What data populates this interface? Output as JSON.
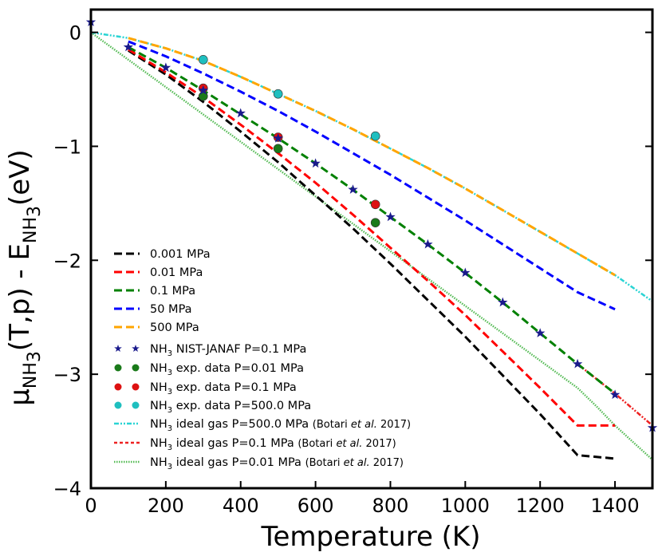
{
  "chart_data": {
    "type": "line",
    "xlabel": "Temperature (K)",
    "ylabel": {
      "mu": "μ",
      "mu_sub": "NH",
      "mu_sub2": "3",
      "mid": "(T,p) - E",
      "e_sub": "NH",
      "e_sub2": "3",
      "unit": "(eV)"
    },
    "xlim": [
      0,
      1500
    ],
    "ylim": [
      -4,
      0.2
    ],
    "xticks": [
      0,
      200,
      400,
      600,
      800,
      1000,
      1200,
      1400
    ],
    "yticks": [
      0,
      -1,
      -2,
      -3,
      -4
    ],
    "xtick_labels": [
      "0",
      "200",
      "400",
      "600",
      "800",
      "1000",
      "1200",
      "1400"
    ],
    "ytick_labels": [
      "0",
      "−1",
      "−2",
      "−3",
      "−4"
    ],
    "legend_position": "lower-left",
    "series": [
      {
        "key": "p0001",
        "name": "0.001 MPa",
        "style": "dashed",
        "color": "#000000",
        "x": [
          100,
          200,
          300,
          400,
          500,
          600,
          700,
          800,
          900,
          1000,
          1100,
          1200,
          1300,
          1400
        ],
        "y": [
          -0.16,
          -0.37,
          -0.61,
          -0.87,
          -1.14,
          -1.43,
          -1.72,
          -2.03,
          -2.35,
          -2.67,
          -3.01,
          -3.35,
          -3.71,
          -3.74
        ]
      },
      {
        "key": "p001",
        "name": "0.01 MPa",
        "style": "dashed",
        "color": "#ff0000",
        "x": [
          100,
          200,
          300,
          400,
          500,
          600,
          700,
          800,
          900,
          1000,
          1100,
          1200,
          1300,
          1400
        ],
        "y": [
          -0.15,
          -0.35,
          -0.57,
          -0.81,
          -1.06,
          -1.32,
          -1.6,
          -1.89,
          -2.18,
          -2.48,
          -2.8,
          -3.12,
          -3.45,
          -3.45
        ]
      },
      {
        "key": "p01",
        "name": "0.1 MPa",
        "style": "dashed",
        "color": "#008000",
        "x": [
          100,
          200,
          300,
          400,
          500,
          600,
          700,
          800,
          900,
          1000,
          1100,
          1200,
          1300,
          1400
        ],
        "y": [
          -0.13,
          -0.31,
          -0.51,
          -0.72,
          -0.93,
          -1.15,
          -1.38,
          -1.62,
          -1.86,
          -2.11,
          -2.37,
          -2.64,
          -2.91,
          -3.17
        ]
      },
      {
        "key": "p50",
        "name": "50 MPa",
        "style": "dashed",
        "color": "#0000ff",
        "x": [
          100,
          200,
          300,
          400,
          500,
          600,
          700,
          800,
          900,
          1000,
          1100,
          1200,
          1300,
          1400
        ],
        "y": [
          -0.08,
          -0.21,
          -0.36,
          -0.52,
          -0.69,
          -0.87,
          -1.06,
          -1.25,
          -1.45,
          -1.65,
          -1.86,
          -2.07,
          -2.28,
          -2.43
        ]
      },
      {
        "key": "p500",
        "name": "500 MPa",
        "style": "dashed",
        "color": "#ffa500",
        "x": [
          100,
          200,
          300,
          400,
          500,
          600,
          700,
          800,
          900,
          1000,
          1100,
          1200,
          1300,
          1400
        ],
        "y": [
          -0.05,
          -0.14,
          -0.25,
          -0.39,
          -0.54,
          -0.69,
          -0.85,
          -1.02,
          -1.19,
          -1.37,
          -1.56,
          -1.75,
          -1.94,
          -2.13
        ]
      },
      {
        "key": "janaf",
        "name_main": "NH",
        "name_sub": "3",
        "name_rest": " NIST-JANAF  P=0.1 MPa",
        "style": "stars",
        "color": "#1a1a8c",
        "x": [
          0,
          100,
          200,
          300,
          400,
          500,
          600,
          700,
          800,
          900,
          1000,
          1100,
          1200,
          1300,
          1400,
          1500
        ],
        "y": [
          0.09,
          -0.13,
          -0.31,
          -0.51,
          -0.71,
          -0.93,
          -1.15,
          -1.38,
          -1.62,
          -1.86,
          -2.11,
          -2.37,
          -2.64,
          -2.91,
          -3.18,
          -3.47
        ]
      },
      {
        "key": "exp001",
        "name_main": "NH",
        "name_sub": "3",
        "name_rest": " exp. data  P=0.01 MPa",
        "style": "circles",
        "color": "#1a7a1a",
        "x": [
          300,
          500,
          760
        ],
        "y": [
          -0.56,
          -1.02,
          -1.67
        ]
      },
      {
        "key": "exp01",
        "name_main": "NH",
        "name_sub": "3",
        "name_rest": " exp. data  P=0.1 MPa",
        "style": "circles",
        "color": "#dd1111",
        "x": [
          300,
          500,
          760
        ],
        "y": [
          -0.49,
          -0.92,
          -1.51
        ]
      },
      {
        "key": "exp500",
        "name_main": "NH",
        "name_sub": "3",
        "name_rest": " exp. data  P=500.0 MPa",
        "style": "circles",
        "color": "#1fbfbf",
        "x": [
          300,
          500,
          760
        ],
        "y": [
          -0.24,
          -0.54,
          -0.91
        ]
      },
      {
        "key": "ideal500",
        "name_main": "NH",
        "name_sub": "3",
        "name_rest": " ideal gas  P=500.0 MPa ",
        "name_cite_a": "(Botari ",
        "name_cite_b": "et al.",
        "name_cite_c": " 2017)",
        "style": "dashdot",
        "color": "#2ad4d4",
        "x": [
          0,
          100,
          200,
          300,
          400,
          500,
          600,
          700,
          800,
          900,
          1000,
          1100,
          1200,
          1300,
          1400,
          1500
        ],
        "y": [
          0.0,
          -0.05,
          -0.14,
          -0.25,
          -0.39,
          -0.54,
          -0.69,
          -0.85,
          -1.02,
          -1.19,
          -1.37,
          -1.56,
          -1.75,
          -1.94,
          -2.13,
          -2.36
        ]
      },
      {
        "key": "ideal01",
        "name_main": "NH",
        "name_sub": "3",
        "name_rest": " ideal gas  P=0.1 MPa ",
        "name_cite_a": "(Botari ",
        "name_cite_b": "et al.",
        "name_cite_c": " 2017)",
        "style": "dashdot",
        "color": "#ee2222",
        "x": [
          1300,
          1350,
          1400,
          1450,
          1500
        ],
        "y": [
          -2.91,
          -3.04,
          -3.17,
          -3.31,
          -3.45
        ]
      },
      {
        "key": "ideal001",
        "name_main": "NH",
        "name_sub": "3",
        "name_rest": " ideal gas  P=0.01 MPa ",
        "name_cite_a": "(Botari ",
        "name_cite_b": "et al.",
        "name_cite_c": " 2017)",
        "style": "dotted",
        "color": "#55bb55",
        "x": [
          0,
          1300,
          1350,
          1400,
          1450,
          1500
        ],
        "y": [
          0.0,
          -3.12,
          -3.28,
          -3.45,
          -3.6,
          -3.75
        ]
      }
    ]
  }
}
